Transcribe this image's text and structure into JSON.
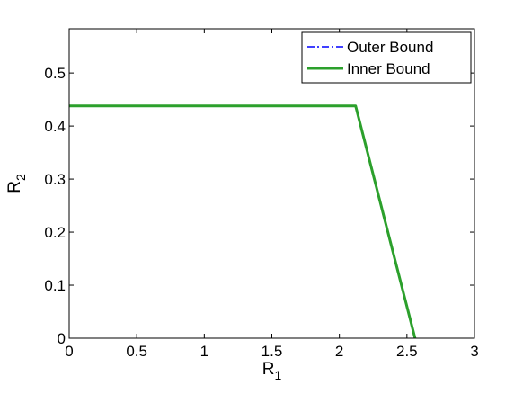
{
  "chart_data": {
    "type": "line",
    "xlabel": {
      "base": "R",
      "sub": "1"
    },
    "ylabel": {
      "base": "R",
      "sub": "2"
    },
    "xlim": [
      0,
      3
    ],
    "ylim": [
      0,
      0.5833
    ],
    "xticks": [
      0,
      0.5,
      1,
      1.5,
      2,
      2.5,
      3
    ],
    "xtick_labels": [
      "0",
      "0.5",
      "1",
      "1.5",
      "2",
      "2.5",
      "3"
    ],
    "yticks": [
      0,
      0.1,
      0.2,
      0.3,
      0.4,
      0.5
    ],
    "ytick_labels": [
      "0",
      "0.1",
      "0.2",
      "0.3",
      "0.4",
      "0.5"
    ],
    "grid": false,
    "legend_position": "top-right",
    "series": [
      {
        "name": "Outer Bound",
        "color": "#0000ff",
        "style": "dash-dot",
        "x": [
          0,
          2.12,
          2.56
        ],
        "y": [
          0.438,
          0.438,
          0
        ]
      },
      {
        "name": "Inner Bound",
        "color": "#2ca02c",
        "style": "solid",
        "x": [
          0,
          2.12,
          2.56
        ],
        "y": [
          0.438,
          0.438,
          0
        ]
      }
    ]
  }
}
